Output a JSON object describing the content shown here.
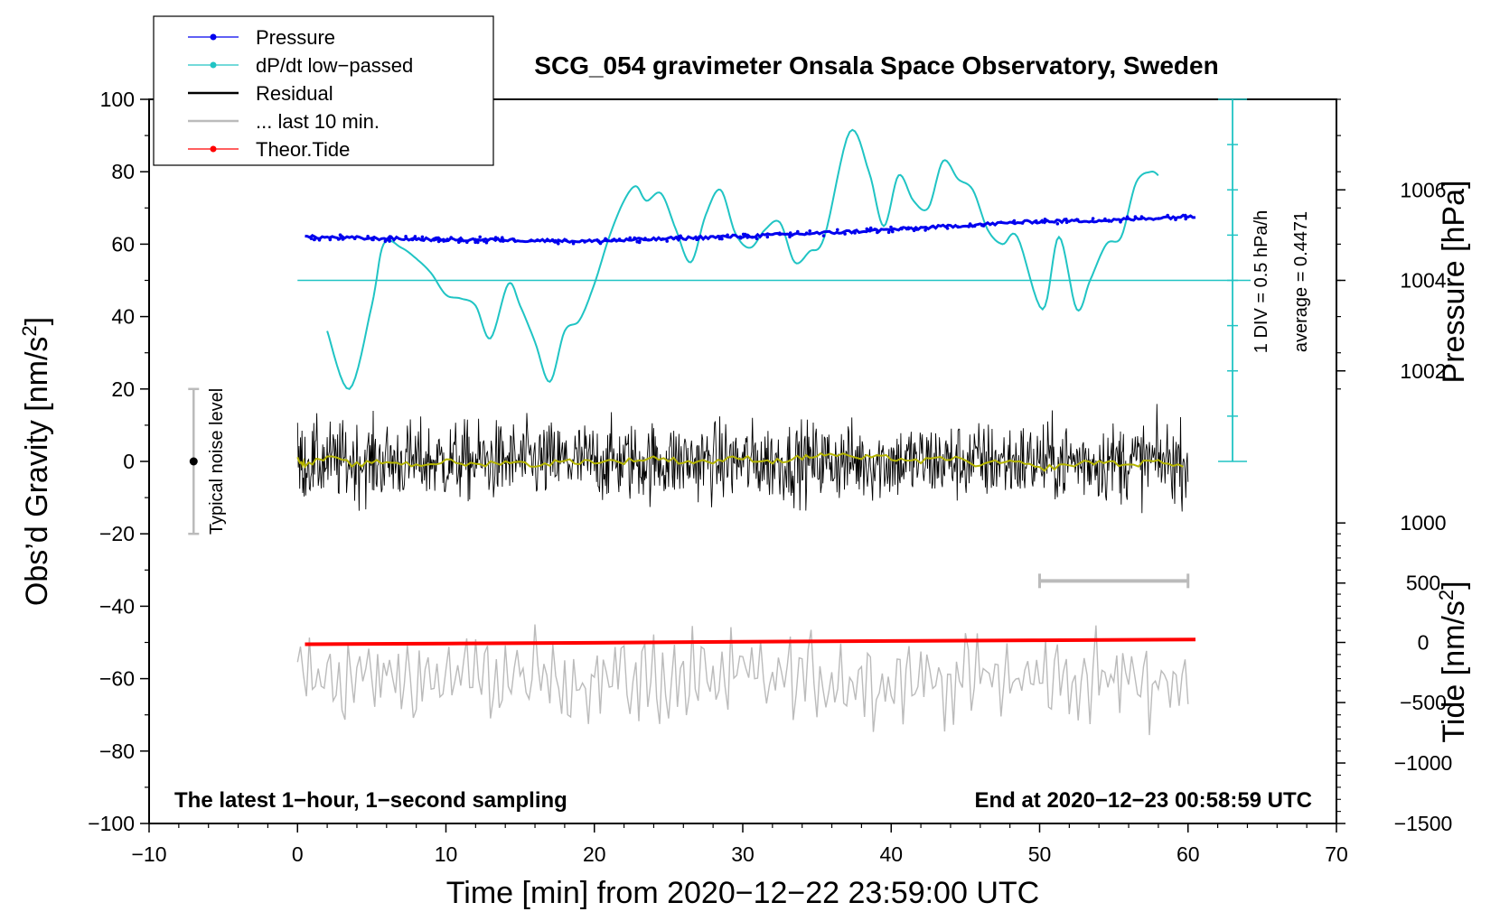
{
  "chart_data": {
    "type": "line",
    "title": "SCG_054 gravimeter Onsala Space Observatory, Sweden",
    "xlabel": "Time [min] from 2020−12−22 23:59:00 UTC",
    "ylabel_left": "Obs’d Gravity [nm/s",
    "ylabel_left_sup": "2",
    "ylabel_left_end": "]",
    "ylabel_right_pressure": "Pressure [hPa]",
    "ylabel_right_tide": "Tide [nm/s",
    "ylabel_right_tide_sup": "2",
    "ylabel_right_tide_end": "]",
    "xlim": [
      -10,
      70
    ],
    "ylim": [
      -100,
      100
    ],
    "x_ticks": [
      "−10",
      "0",
      "10",
      "20",
      "30",
      "40",
      "50",
      "60",
      "70"
    ],
    "x_tick_values": [
      -10,
      0,
      10,
      20,
      30,
      40,
      50,
      60,
      70
    ],
    "y_ticks": [
      "−100",
      "−80",
      "−60",
      "−40",
      "−20",
      "0",
      "20",
      "40",
      "60",
      "80",
      "100"
    ],
    "y_tick_values": [
      -100,
      -80,
      -60,
      -40,
      -20,
      0,
      20,
      40,
      60,
      80,
      100
    ],
    "pressure_axis": {
      "ticks": [
        "1002",
        "1004",
        "1006"
      ],
      "tick_values": [
        1002,
        1004,
        1006
      ],
      "gravity_equiv": [
        25,
        50,
        75
      ]
    },
    "tide_axis": {
      "ticks": [
        "1000",
        "500",
        "0",
        "−500",
        "−1000",
        "−1500"
      ],
      "tick_values": [
        1000,
        500,
        0,
        -500,
        -1000,
        -1500
      ],
      "gravity_equiv": [
        -17,
        -33.6,
        -50,
        -66.6,
        -83.3,
        -100
      ]
    },
    "dpdt_scale": {
      "label": "1 DIV = 0.5 hPa/h",
      "average_label": "average = 0.4471",
      "gravity_range": [
        0,
        100
      ],
      "x": 63
    },
    "legend": {
      "position": "top-left",
      "entries": [
        {
          "label": "Pressure",
          "color": "#0000ee",
          "marker": true
        },
        {
          "label": "dP/dt low−passed",
          "color": "#20c4c4",
          "marker": true
        },
        {
          "label": "Residual",
          "color": "#000000",
          "marker": false
        },
        {
          "label": "... last 10 min.",
          "color": "#bbbbbb",
          "marker": false
        },
        {
          "label": "Theor.Tide",
          "color": "#ff0000",
          "marker": true
        }
      ]
    },
    "noise_bar": {
      "label": "Typical noise level",
      "x": -7,
      "low": -20,
      "high": 20,
      "center": 0
    },
    "ten_min_bar": {
      "x0": 50,
      "x1": 60,
      "y": -33
    },
    "dpdt_baseline": {
      "x0": 0,
      "x1": 63,
      "y": 50
    },
    "series": [
      {
        "name": "Pressure",
        "color": "#0000ee",
        "x": [
          0.5,
          5,
          10,
          15,
          20,
          25,
          30,
          35,
          40,
          45,
          50,
          55,
          60.5
        ],
        "y": [
          62,
          61.6,
          61.3,
          61.1,
          60.8,
          61.5,
          62.2,
          63,
          64,
          65.2,
          66.3,
          66.6,
          67.8
        ]
      },
      {
        "name": "dP/dt low−passed",
        "color": "#20c4c4",
        "x": [
          2,
          3.5,
          5,
          5.8,
          7,
          8,
          9,
          10,
          11,
          12,
          13,
          14.2,
          15,
          16,
          17,
          18,
          19,
          20,
          21,
          22,
          22.8,
          23.5,
          24.5,
          25.5,
          26.5,
          27.5,
          28.5,
          29.5,
          30.5,
          31.5,
          32.5,
          33.5,
          34.5,
          35.5,
          37.2,
          38.5,
          39.5,
          40.5,
          41.5,
          42.5,
          43.5,
          44.5,
          45.5,
          46.5,
          47.5,
          48.5,
          50.2,
          51.3,
          52.5,
          53.4,
          54.5,
          55.5,
          56.5,
          57.5,
          58
        ],
        "y": [
          36,
          20,
          43,
          60,
          59,
          56,
          52,
          46,
          45,
          43,
          34,
          49,
          43,
          33,
          22,
          36,
          39,
          49,
          62,
          72,
          76,
          72,
          74,
          64,
          55,
          68,
          75,
          63,
          59,
          64,
          66,
          55,
          58,
          62,
          91,
          80,
          65,
          79,
          72,
          70,
          83,
          78,
          75,
          64,
          60,
          62,
          42,
          62,
          42,
          50,
          60,
          62,
          77,
          80,
          79
        ]
      },
      {
        "name": "Residual",
        "color": "#000000",
        "x_range": [
          0,
          60
        ],
        "y_mean": 0,
        "y_amplitude": 12
      },
      {
        "name": "Residual smoothed",
        "color": "#b4b400",
        "x": [
          0,
          0.5,
          2,
          4,
          6,
          8,
          10,
          12,
          14,
          16,
          18,
          20,
          22,
          24,
          26,
          28,
          30,
          32,
          34,
          35.5,
          38,
          40,
          42,
          44,
          46,
          48,
          50,
          52,
          54,
          56,
          58,
          60
        ],
        "y": [
          1,
          -1,
          1,
          -1,
          0,
          -1,
          0,
          -1,
          0,
          -1,
          0,
          0,
          0,
          1,
          0,
          0,
          1,
          0,
          1,
          2,
          1,
          1,
          0,
          1,
          -1,
          0,
          -2,
          -1,
          0,
          -1,
          0,
          -1
        ]
      },
      {
        "name": "... last 10 min.",
        "color": "#bbbbbb",
        "x_range": [
          0,
          60
        ],
        "y_mean": -60,
        "y_amplitude": 10
      },
      {
        "name": "Theor.Tide",
        "color": "#ff0000",
        "x": [
          0.5,
          10,
          20,
          30,
          40,
          50,
          60.5
        ],
        "y": [
          -50.5,
          -50.3,
          -50.1,
          -49.8,
          -49.6,
          -49.4,
          -49.2
        ]
      }
    ],
    "annotations": {
      "left_bottom": "The latest 1−hour, 1−second sampling",
      "right_bottom": "End at 2020−12−23 00:58:59 UTC"
    }
  }
}
